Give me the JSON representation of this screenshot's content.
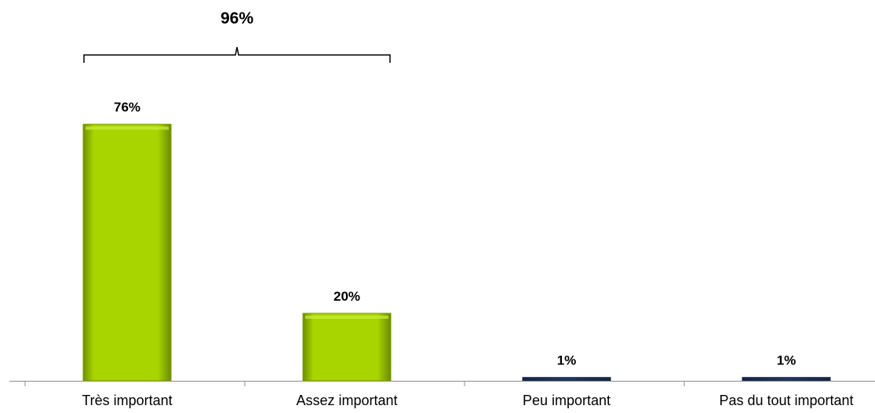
{
  "chart_data": {
    "type": "bar",
    "categories": [
      "Très important",
      "Assez important",
      "Peu important",
      "Pas du tout important"
    ],
    "values": [
      76,
      20,
      1,
      1
    ],
    "value_labels": [
      "76%",
      "20%",
      "1%",
      "1%"
    ],
    "bar_colors": [
      "#a8d400",
      "#a8d400",
      "#1f3864",
      "#1f3864"
    ],
    "ylim": [
      0,
      100
    ],
    "grid": false,
    "legend": "none",
    "group_annotation": {
      "label": "96%",
      "spans_categories": [
        0,
        1
      ]
    }
  }
}
